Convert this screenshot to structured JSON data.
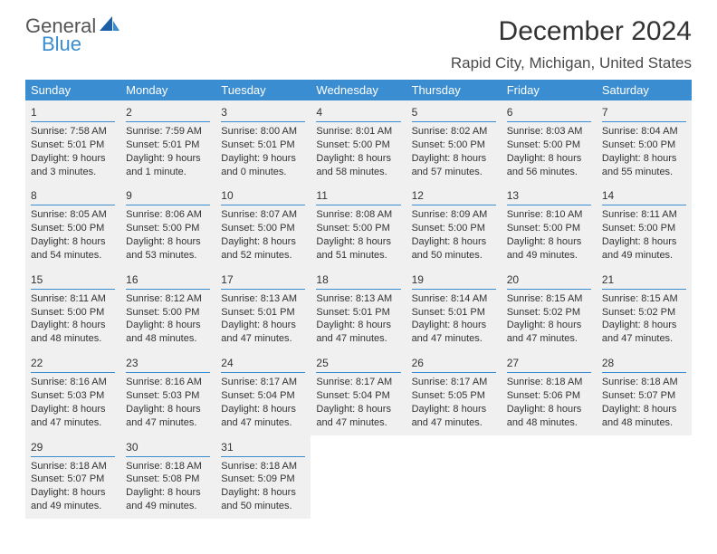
{
  "logo": {
    "line1": "General",
    "line2": "Blue"
  },
  "title": "December 2024",
  "location": "Rapid City, Michigan, United States",
  "header_bg": "#3a8dd0",
  "cell_bg": "#f0f0f0",
  "rule_color": "#3a8dd0",
  "day_headers": [
    "Sunday",
    "Monday",
    "Tuesday",
    "Wednesday",
    "Thursday",
    "Friday",
    "Saturday"
  ],
  "weeks": [
    [
      {
        "n": "1",
        "sr": "Sunrise: 7:58 AM",
        "ss": "Sunset: 5:01 PM",
        "d1": "Daylight: 9 hours",
        "d2": "and 3 minutes."
      },
      {
        "n": "2",
        "sr": "Sunrise: 7:59 AM",
        "ss": "Sunset: 5:01 PM",
        "d1": "Daylight: 9 hours",
        "d2": "and 1 minute."
      },
      {
        "n": "3",
        "sr": "Sunrise: 8:00 AM",
        "ss": "Sunset: 5:01 PM",
        "d1": "Daylight: 9 hours",
        "d2": "and 0 minutes."
      },
      {
        "n": "4",
        "sr": "Sunrise: 8:01 AM",
        "ss": "Sunset: 5:00 PM",
        "d1": "Daylight: 8 hours",
        "d2": "and 58 minutes."
      },
      {
        "n": "5",
        "sr": "Sunrise: 8:02 AM",
        "ss": "Sunset: 5:00 PM",
        "d1": "Daylight: 8 hours",
        "d2": "and 57 minutes."
      },
      {
        "n": "6",
        "sr": "Sunrise: 8:03 AM",
        "ss": "Sunset: 5:00 PM",
        "d1": "Daylight: 8 hours",
        "d2": "and 56 minutes."
      },
      {
        "n": "7",
        "sr": "Sunrise: 8:04 AM",
        "ss": "Sunset: 5:00 PM",
        "d1": "Daylight: 8 hours",
        "d2": "and 55 minutes."
      }
    ],
    [
      {
        "n": "8",
        "sr": "Sunrise: 8:05 AM",
        "ss": "Sunset: 5:00 PM",
        "d1": "Daylight: 8 hours",
        "d2": "and 54 minutes."
      },
      {
        "n": "9",
        "sr": "Sunrise: 8:06 AM",
        "ss": "Sunset: 5:00 PM",
        "d1": "Daylight: 8 hours",
        "d2": "and 53 minutes."
      },
      {
        "n": "10",
        "sr": "Sunrise: 8:07 AM",
        "ss": "Sunset: 5:00 PM",
        "d1": "Daylight: 8 hours",
        "d2": "and 52 minutes."
      },
      {
        "n": "11",
        "sr": "Sunrise: 8:08 AM",
        "ss": "Sunset: 5:00 PM",
        "d1": "Daylight: 8 hours",
        "d2": "and 51 minutes."
      },
      {
        "n": "12",
        "sr": "Sunrise: 8:09 AM",
        "ss": "Sunset: 5:00 PM",
        "d1": "Daylight: 8 hours",
        "d2": "and 50 minutes."
      },
      {
        "n": "13",
        "sr": "Sunrise: 8:10 AM",
        "ss": "Sunset: 5:00 PM",
        "d1": "Daylight: 8 hours",
        "d2": "and 49 minutes."
      },
      {
        "n": "14",
        "sr": "Sunrise: 8:11 AM",
        "ss": "Sunset: 5:00 PM",
        "d1": "Daylight: 8 hours",
        "d2": "and 49 minutes."
      }
    ],
    [
      {
        "n": "15",
        "sr": "Sunrise: 8:11 AM",
        "ss": "Sunset: 5:00 PM",
        "d1": "Daylight: 8 hours",
        "d2": "and 48 minutes."
      },
      {
        "n": "16",
        "sr": "Sunrise: 8:12 AM",
        "ss": "Sunset: 5:00 PM",
        "d1": "Daylight: 8 hours",
        "d2": "and 48 minutes."
      },
      {
        "n": "17",
        "sr": "Sunrise: 8:13 AM",
        "ss": "Sunset: 5:01 PM",
        "d1": "Daylight: 8 hours",
        "d2": "and 47 minutes."
      },
      {
        "n": "18",
        "sr": "Sunrise: 8:13 AM",
        "ss": "Sunset: 5:01 PM",
        "d1": "Daylight: 8 hours",
        "d2": "and 47 minutes."
      },
      {
        "n": "19",
        "sr": "Sunrise: 8:14 AM",
        "ss": "Sunset: 5:01 PM",
        "d1": "Daylight: 8 hours",
        "d2": "and 47 minutes."
      },
      {
        "n": "20",
        "sr": "Sunrise: 8:15 AM",
        "ss": "Sunset: 5:02 PM",
        "d1": "Daylight: 8 hours",
        "d2": "and 47 minutes."
      },
      {
        "n": "21",
        "sr": "Sunrise: 8:15 AM",
        "ss": "Sunset: 5:02 PM",
        "d1": "Daylight: 8 hours",
        "d2": "and 47 minutes."
      }
    ],
    [
      {
        "n": "22",
        "sr": "Sunrise: 8:16 AM",
        "ss": "Sunset: 5:03 PM",
        "d1": "Daylight: 8 hours",
        "d2": "and 47 minutes."
      },
      {
        "n": "23",
        "sr": "Sunrise: 8:16 AM",
        "ss": "Sunset: 5:03 PM",
        "d1": "Daylight: 8 hours",
        "d2": "and 47 minutes."
      },
      {
        "n": "24",
        "sr": "Sunrise: 8:17 AM",
        "ss": "Sunset: 5:04 PM",
        "d1": "Daylight: 8 hours",
        "d2": "and 47 minutes."
      },
      {
        "n": "25",
        "sr": "Sunrise: 8:17 AM",
        "ss": "Sunset: 5:04 PM",
        "d1": "Daylight: 8 hours",
        "d2": "and 47 minutes."
      },
      {
        "n": "26",
        "sr": "Sunrise: 8:17 AM",
        "ss": "Sunset: 5:05 PM",
        "d1": "Daylight: 8 hours",
        "d2": "and 47 minutes."
      },
      {
        "n": "27",
        "sr": "Sunrise: 8:18 AM",
        "ss": "Sunset: 5:06 PM",
        "d1": "Daylight: 8 hours",
        "d2": "and 48 minutes."
      },
      {
        "n": "28",
        "sr": "Sunrise: 8:18 AM",
        "ss": "Sunset: 5:07 PM",
        "d1": "Daylight: 8 hours",
        "d2": "and 48 minutes."
      }
    ],
    [
      {
        "n": "29",
        "sr": "Sunrise: 8:18 AM",
        "ss": "Sunset: 5:07 PM",
        "d1": "Daylight: 8 hours",
        "d2": "and 49 minutes."
      },
      {
        "n": "30",
        "sr": "Sunrise: 8:18 AM",
        "ss": "Sunset: 5:08 PM",
        "d1": "Daylight: 8 hours",
        "d2": "and 49 minutes."
      },
      {
        "n": "31",
        "sr": "Sunrise: 8:18 AM",
        "ss": "Sunset: 5:09 PM",
        "d1": "Daylight: 8 hours",
        "d2": "and 50 minutes."
      },
      null,
      null,
      null,
      null
    ]
  ]
}
